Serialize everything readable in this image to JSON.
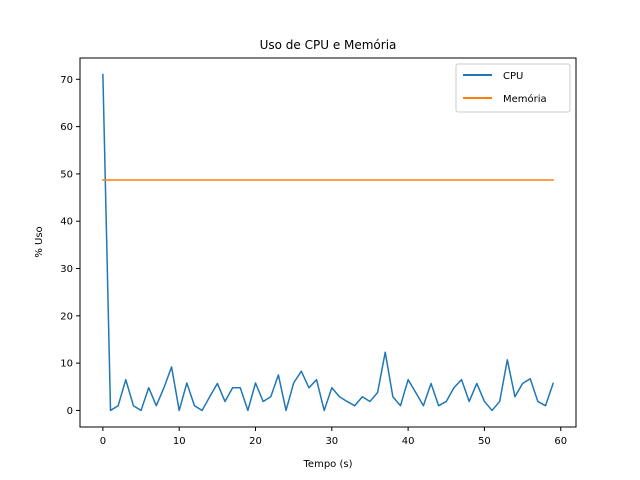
{
  "chart_data": {
    "type": "line",
    "title": "Uso de CPU e Memória",
    "xlabel": "Tempo (s)",
    "ylabel": "% Uso",
    "xlim": [
      -3,
      62
    ],
    "ylim": [
      -3.5,
      74.5
    ],
    "xticks": [
      0,
      10,
      20,
      30,
      40,
      50,
      60
    ],
    "yticks": [
      0,
      10,
      20,
      30,
      40,
      50,
      60,
      70
    ],
    "grid": false,
    "legend": "top-right",
    "x": [
      0,
      1,
      2,
      3,
      4,
      5,
      6,
      7,
      8,
      9,
      10,
      11,
      12,
      13,
      14,
      15,
      16,
      17,
      18,
      19,
      20,
      21,
      22,
      23,
      24,
      25,
      26,
      27,
      28,
      29,
      30,
      31,
      32,
      33,
      34,
      35,
      36,
      37,
      38,
      39,
      40,
      41,
      42,
      43,
      44,
      45,
      46,
      47,
      48,
      49,
      50,
      51,
      52,
      53,
      54,
      55,
      56,
      57,
      58,
      59
    ],
    "series": [
      {
        "name": "CPU",
        "color": "#1f77b4",
        "values": [
          71.0,
          0.0,
          1.0,
          6.5,
          1.0,
          0.0,
          4.8,
          1.0,
          4.8,
          9.2,
          0.0,
          5.8,
          1.0,
          0.0,
          2.9,
          5.7,
          1.9,
          4.8,
          4.8,
          0.0,
          5.8,
          1.9,
          2.9,
          7.5,
          0.0,
          5.8,
          8.3,
          4.8,
          6.5,
          0.0,
          4.8,
          2.9,
          1.9,
          1.0,
          2.9,
          1.9,
          3.8,
          12.3,
          2.9,
          1.0,
          6.5,
          3.8,
          1.0,
          5.7,
          1.0,
          1.9,
          4.8,
          6.5,
          1.9,
          5.7,
          1.9,
          0.0,
          1.9,
          10.7,
          2.9,
          5.7,
          6.7,
          1.9,
          1.0,
          5.7
        ]
      },
      {
        "name": "Memória",
        "color": "#ff7f0e",
        "values": [
          48.7,
          48.7,
          48.7,
          48.7,
          48.7,
          48.7,
          48.7,
          48.7,
          48.7,
          48.7,
          48.7,
          48.7,
          48.7,
          48.7,
          48.7,
          48.7,
          48.7,
          48.7,
          48.7,
          48.7,
          48.7,
          48.7,
          48.7,
          48.7,
          48.7,
          48.7,
          48.7,
          48.7,
          48.7,
          48.7,
          48.7,
          48.7,
          48.7,
          48.7,
          48.7,
          48.7,
          48.7,
          48.7,
          48.7,
          48.7,
          48.7,
          48.7,
          48.7,
          48.7,
          48.7,
          48.7,
          48.7,
          48.7,
          48.7,
          48.7,
          48.7,
          48.7,
          48.7,
          48.7,
          48.7,
          48.7,
          48.7,
          48.7,
          48.7,
          48.7
        ]
      }
    ]
  }
}
